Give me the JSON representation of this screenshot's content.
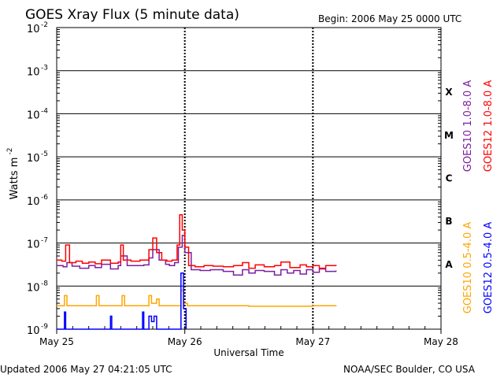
{
  "header": {
    "title": "GOES Xray Flux (5 minute data)",
    "begin": "Begin:  2006 May 25 0000 UTC"
  },
  "footer": {
    "updated": "Updated 2006 May 27 04:21:05 UTC",
    "credit": "NOAA/SEC Boulder, CO USA"
  },
  "colors": {
    "goes10_long": "#7b1fa2",
    "goes12_long": "#ff0000",
    "goes10_short": "#ffa500",
    "goes12_short": "#0000ff",
    "axis": "#000000",
    "grid": "#000000"
  },
  "chart_data": {
    "type": "line",
    "title": "GOES Xray Flux (5 minute data)",
    "xlabel": "Universal Time",
    "ylabel": "Watts m",
    "ylabel_exp": "-2",
    "yscale": "log",
    "ylim": [
      1e-09,
      0.01
    ],
    "xlim": [
      0,
      3
    ],
    "x_ticks": [
      {
        "x": 0,
        "label": "May 25"
      },
      {
        "x": 1,
        "label": "May 26"
      },
      {
        "x": 2,
        "label": "May 27"
      },
      {
        "x": 3,
        "label": "May 28"
      }
    ],
    "y_ticks": [
      {
        "exp": -9,
        "base": "10",
        "sup": "-9"
      },
      {
        "exp": -8,
        "base": "10",
        "sup": "-8"
      },
      {
        "exp": -7,
        "base": "10",
        "sup": "-7"
      },
      {
        "exp": -6,
        "base": "10",
        "sup": "-6"
      },
      {
        "exp": -5,
        "base": "10",
        "sup": "-5"
      },
      {
        "exp": -4,
        "base": "10",
        "sup": "-4"
      },
      {
        "exp": -3,
        "base": "10",
        "sup": "-3"
      },
      {
        "exp": -2,
        "base": "10",
        "sup": "-2"
      }
    ],
    "flare_classes": [
      {
        "label": "A",
        "exp": -7.5
      },
      {
        "label": "B",
        "exp": -6.5
      },
      {
        "label": "C",
        "exp": -5.5
      },
      {
        "label": "M",
        "exp": -4.5
      },
      {
        "label": "X",
        "exp": -3.5
      }
    ],
    "grid": true,
    "legend_position": "right",
    "series": [
      {
        "name": "GOES10 1.0-8.0 A",
        "color": "#7b1fa2",
        "x": [
          0.0,
          0.05,
          0.08,
          0.12,
          0.18,
          0.25,
          0.3,
          0.35,
          0.42,
          0.48,
          0.5,
          0.55,
          0.6,
          0.68,
          0.72,
          0.75,
          0.8,
          0.85,
          0.88,
          0.92,
          0.95,
          0.98,
          1.0,
          1.05,
          1.12,
          1.2,
          1.3,
          1.38,
          1.45,
          1.5,
          1.55,
          1.62,
          1.7,
          1.75,
          1.8,
          1.85,
          1.9,
          1.95,
          2.0,
          2.05,
          2.1,
          2.18
        ],
        "y": [
          3e-08,
          2.8e-08,
          3.5e-08,
          2.9e-08,
          2.6e-08,
          3e-08,
          2.7e-08,
          3.2e-08,
          2.5e-08,
          3e-08,
          5e-08,
          3e-08,
          3e-08,
          3.1e-08,
          4.5e-08,
          7e-08,
          4e-08,
          3.2e-08,
          3e-08,
          3.5e-08,
          8e-08,
          1.5e-07,
          6e-08,
          2.4e-08,
          2.3e-08,
          2.4e-08,
          2.2e-08,
          1.8e-08,
          2.4e-08,
          2e-08,
          2.3e-08,
          2.2e-08,
          1.8e-08,
          2.4e-08,
          2e-08,
          2.3e-08,
          1.9e-08,
          2.4e-08,
          2.1e-08,
          2.5e-08,
          2.2e-08,
          2.3e-08
        ]
      },
      {
        "name": "GOES12 1.0-8.0 A",
        "color": "#ff0000",
        "x": [
          0.0,
          0.04,
          0.07,
          0.1,
          0.15,
          0.2,
          0.25,
          0.3,
          0.35,
          0.42,
          0.48,
          0.5,
          0.52,
          0.58,
          0.65,
          0.72,
          0.75,
          0.78,
          0.82,
          0.86,
          0.9,
          0.94,
          0.96,
          0.98,
          1.0,
          1.03,
          1.08,
          1.15,
          1.22,
          1.3,
          1.38,
          1.45,
          1.5,
          1.55,
          1.62,
          1.7,
          1.75,
          1.82,
          1.9,
          1.95,
          2.0,
          2.05,
          2.1,
          2.18
        ],
        "y": [
          4e-08,
          3.8e-08,
          9e-08,
          3.5e-08,
          3.8e-08,
          3.4e-08,
          3.6e-08,
          3.3e-08,
          4e-08,
          3.4e-08,
          3.6e-08,
          9e-08,
          4e-08,
          3.8e-08,
          4e-08,
          7e-08,
          1.3e-07,
          6e-08,
          4e-08,
          3.8e-08,
          4e-08,
          9e-08,
          4.5e-07,
          2e-07,
          8e-08,
          3e-08,
          2.8e-08,
          3e-08,
          2.9e-08,
          2.8e-08,
          3e-08,
          3.5e-08,
          2.6e-08,
          3.1e-08,
          2.8e-08,
          3e-08,
          3.6e-08,
          2.7e-08,
          3.1e-08,
          2.8e-08,
          3e-08,
          2.6e-08,
          3e-08,
          3.1e-08
        ]
      },
      {
        "name": "GOES10 0.5-4.0 A",
        "color": "#ffa500",
        "x": [
          0.0,
          0.05,
          0.06,
          0.08,
          0.3,
          0.31,
          0.33,
          0.5,
          0.51,
          0.53,
          0.7,
          0.72,
          0.74,
          0.78,
          0.8,
          0.95,
          0.97,
          0.99,
          1.02,
          1.5,
          2.0,
          2.18
        ],
        "y": [
          3.5e-09,
          3.5e-09,
          6e-09,
          3.5e-09,
          3.5e-09,
          6e-09,
          3.5e-09,
          3.5e-09,
          6e-09,
          3.5e-09,
          3.5e-09,
          6e-09,
          4e-09,
          5e-09,
          3.5e-09,
          3.5e-09,
          8e-09,
          4e-09,
          3.5e-09,
          3.4e-09,
          3.5e-09,
          3.4e-09
        ]
      },
      {
        "name": "GOES12 0.5-4.0 A",
        "color": "#0000ff",
        "x": [
          0.0,
          0.05,
          0.06,
          0.07,
          0.4,
          0.42,
          0.43,
          0.66,
          0.67,
          0.68,
          0.7,
          0.72,
          0.74,
          0.76,
          0.78,
          0.95,
          0.97,
          0.99,
          1.01
        ],
        "y": [
          1e-09,
          1e-09,
          2.5e-09,
          1e-09,
          1e-09,
          2e-09,
          1e-09,
          1e-09,
          2.5e-09,
          1e-09,
          1e-09,
          2e-09,
          1.5e-09,
          2e-09,
          1e-09,
          1e-09,
          2e-08,
          3e-09,
          1e-09
        ]
      }
    ]
  }
}
